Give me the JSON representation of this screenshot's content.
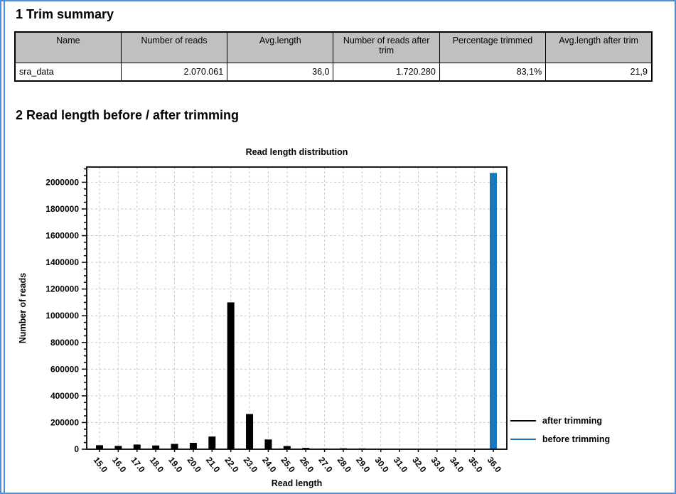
{
  "page": {
    "frame_color": "#4a90e2",
    "background": "#ffffff"
  },
  "sections": {
    "trim_summary": {
      "heading": "1 Trim summary",
      "table": {
        "header_bg": "#c0c0c0",
        "headers": [
          "Name",
          "Number of reads",
          "Avg.length",
          "Number of reads after trim",
          "Percentage trimmed",
          "Avg.length after trim"
        ],
        "rows": [
          [
            "sra_data",
            "2.070.061",
            "36,0",
            "1.720.280",
            "83,1%",
            "21,9"
          ]
        ]
      }
    },
    "read_length": {
      "heading": "2 Read length before / after trimming"
    }
  },
  "chart_data": {
    "type": "bar",
    "title": "Read length distribution",
    "xlabel": "Read length",
    "ylabel": "Number of reads",
    "categories": [
      "15.0",
      "16.0",
      "17.0",
      "18.0",
      "19.0",
      "20.0",
      "21.0",
      "22.0",
      "23.0",
      "24.0",
      "25.0",
      "26.0",
      "27.0",
      "28.0",
      "29.0",
      "30.0",
      "31.0",
      "32.0",
      "33.0",
      "34.0",
      "35.0",
      "36.0"
    ],
    "series": [
      {
        "name": "after trimming",
        "color": "#000000",
        "values": [
          30000,
          25000,
          35000,
          28000,
          40000,
          48000,
          95000,
          1100000,
          264000,
          73000,
          24000,
          10000,
          5000,
          7000,
          6000,
          2000,
          0,
          0,
          0,
          0,
          0,
          0
        ]
      },
      {
        "name": "before trimming",
        "color": "#1878be",
        "values": [
          0,
          0,
          0,
          0,
          0,
          0,
          0,
          0,
          0,
          0,
          0,
          0,
          0,
          0,
          0,
          0,
          0,
          0,
          0,
          0,
          0,
          2070061
        ]
      }
    ],
    "ylim": [
      0,
      2114000
    ],
    "ytick_step": 200000,
    "ytick_max_label": 2000000,
    "grid": true,
    "legend_position": "right",
    "gridline_color": "#c9c9c9"
  }
}
